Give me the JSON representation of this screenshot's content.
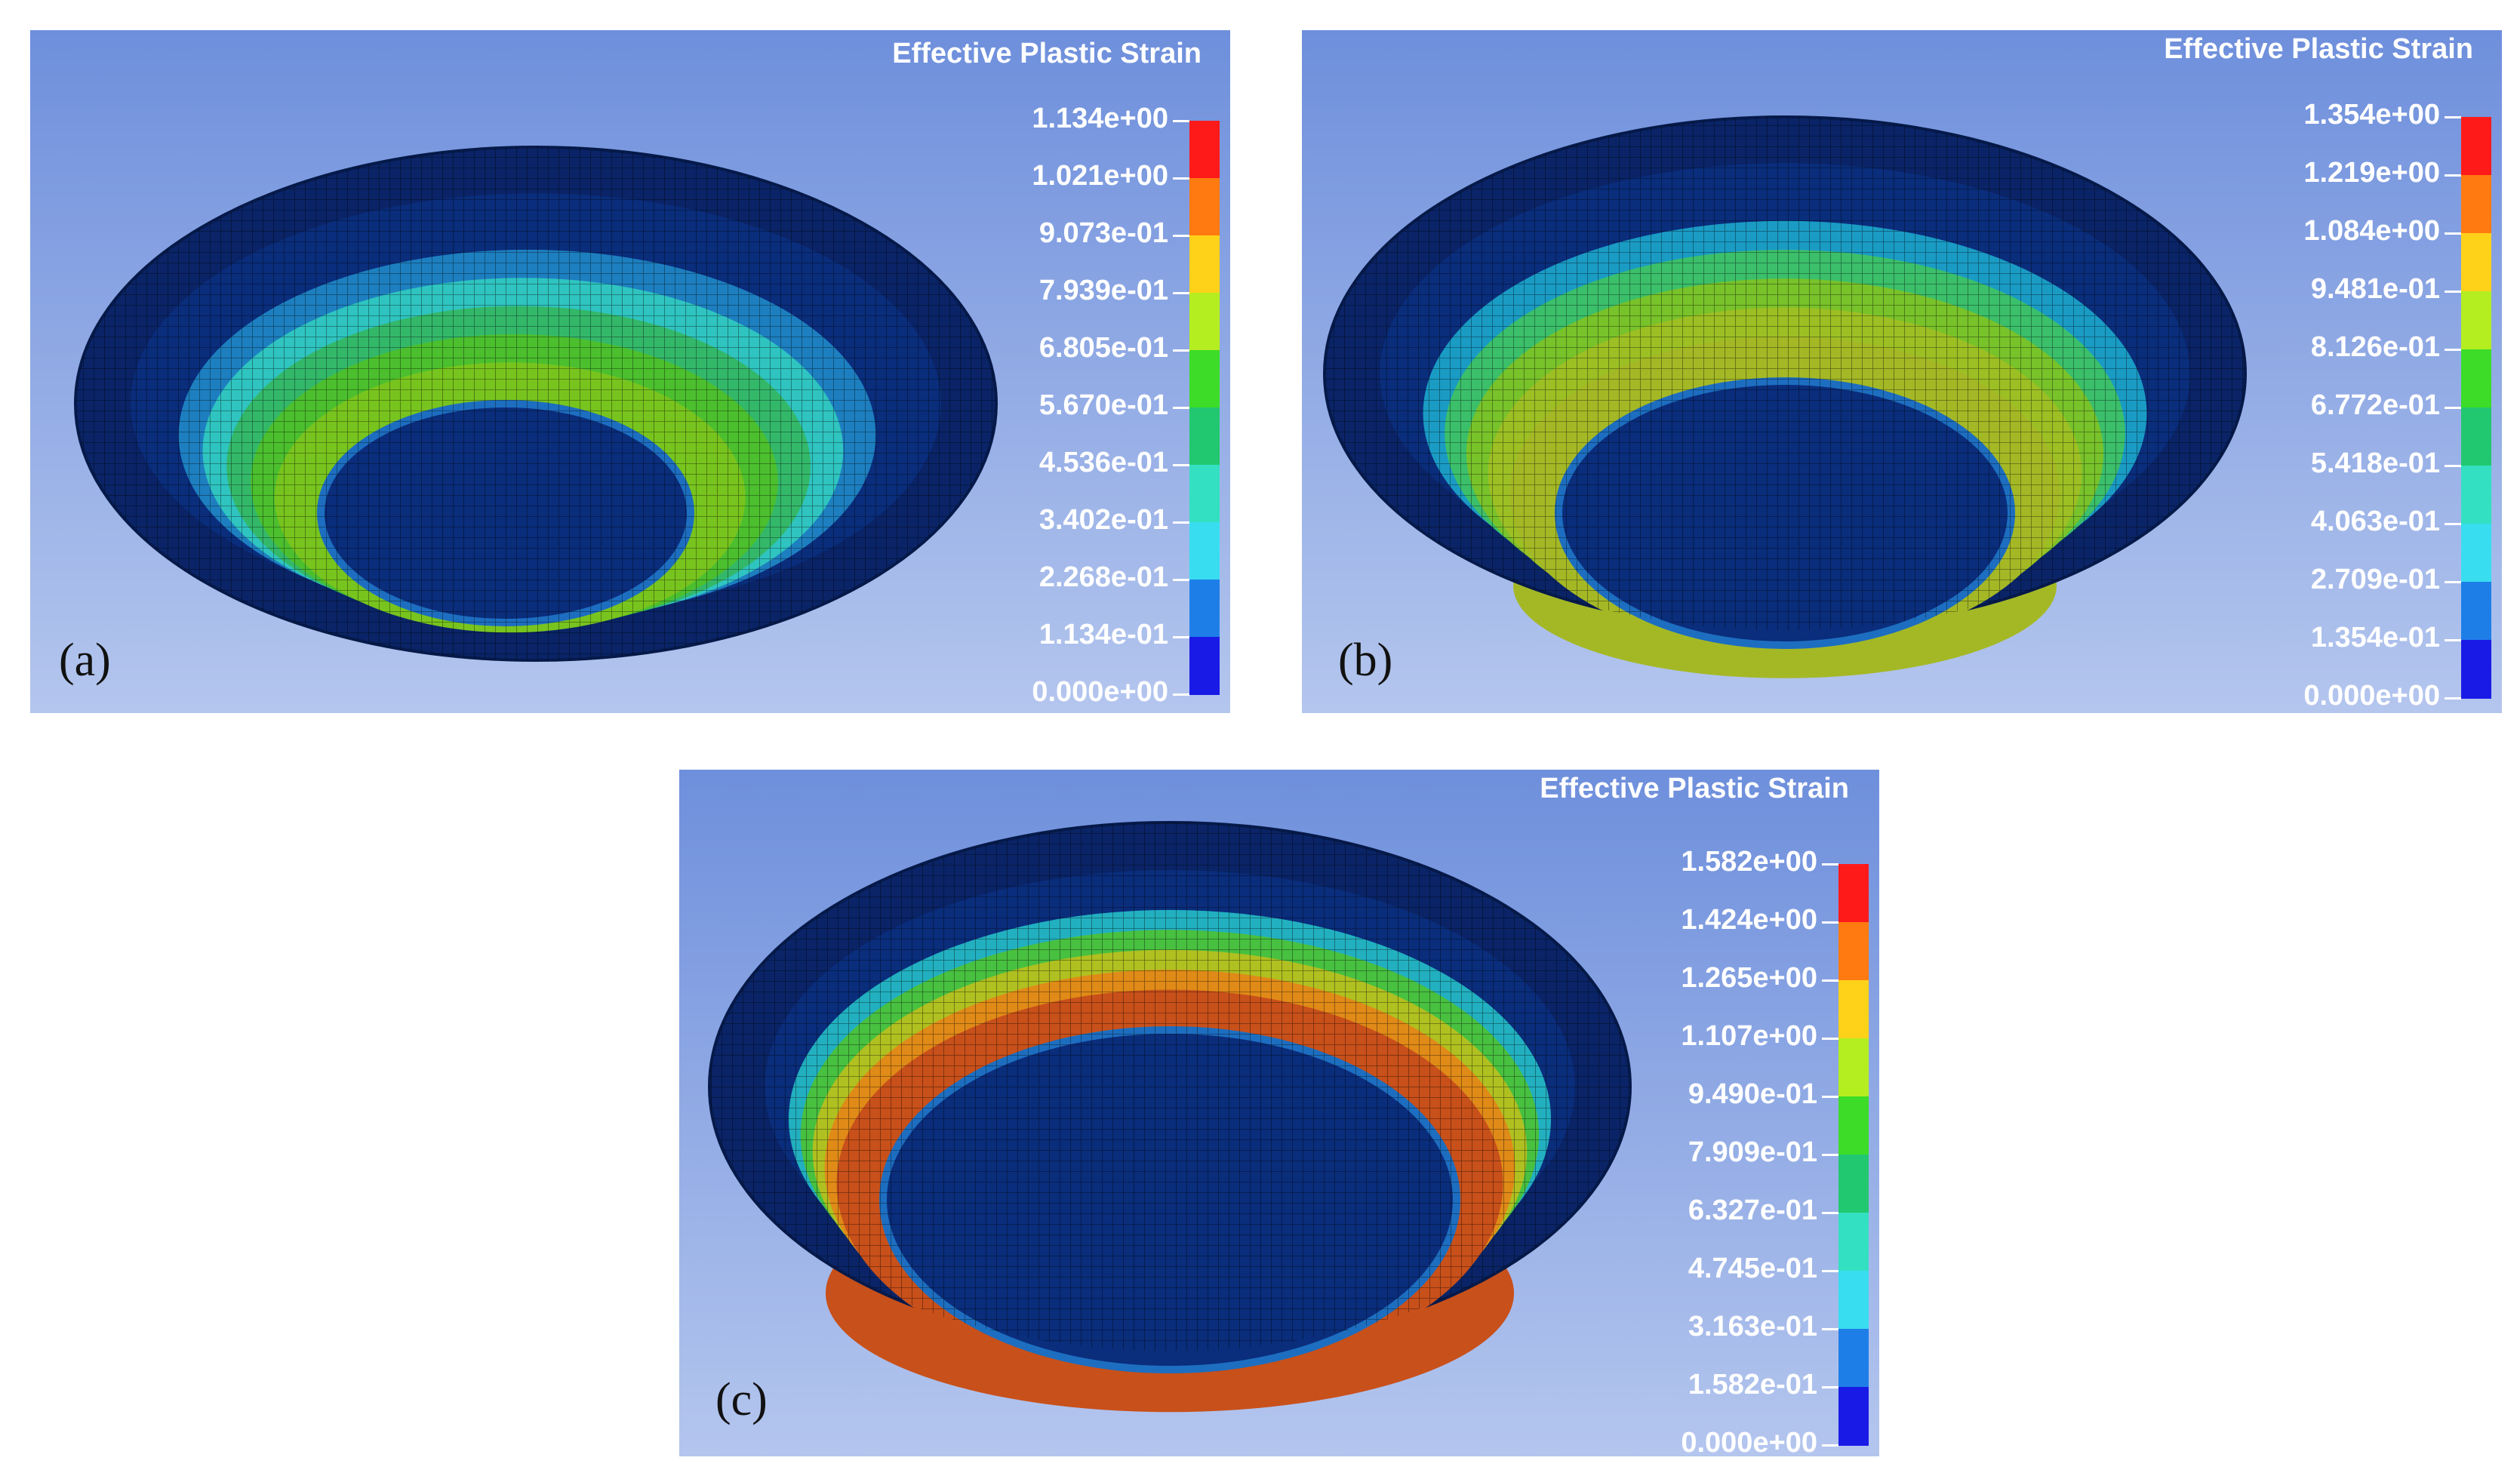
{
  "panels": [
    {
      "tag": "(a)",
      "legend_title": "Effective Plastic Strain",
      "scale_labels": [
        "1.134e+00",
        "1.021e+00",
        "9.073e-01",
        "7.939e-01",
        "6.805e-01",
        "5.670e-01",
        "4.536e-01",
        "3.402e-01",
        "2.268e-01",
        "1.134e-01",
        "0.000e+00"
      ],
      "bands": [
        "#0a2d7c",
        "#0a2d7c",
        "#1d7fc0",
        "#2fc4c0",
        "#33b86a",
        "#4cbf2e",
        "#78c41e"
      ],
      "has_lower_wall": false
    },
    {
      "tag": "(b)",
      "legend_title": "Effective Plastic Strain",
      "scale_labels": [
        "1.354e+00",
        "1.219e+00",
        "1.084e+00",
        "9.481e-01",
        "8.126e-01",
        "6.772e-01",
        "5.418e-01",
        "4.063e-01",
        "2.709e-01",
        "1.354e-01",
        "0.000e+00"
      ],
      "bands": [
        "#0a2d7c",
        "#0a2d7c",
        "#1a9bc4",
        "#3bbf6a",
        "#78c22a",
        "#9cbf24",
        "#a4b826"
      ],
      "has_lower_wall": true
    },
    {
      "tag": "(c)",
      "legend_title": "Effective Plastic Strain",
      "scale_labels": [
        "1.582e+00",
        "1.424e+00",
        "1.265e+00",
        "1.107e+00",
        "9.490e-01",
        "7.909e-01",
        "6.327e-01",
        "4.745e-01",
        "3.163e-01",
        "1.582e-01",
        "0.000e+00"
      ],
      "bands": [
        "#0a2d7c",
        "#0a2d7c",
        "#22b0c0",
        "#48c040",
        "#b0c020",
        "#e08a18",
        "#c8501a"
      ],
      "has_lower_wall": true
    }
  ],
  "color_scale": [
    "#ff1a1a",
    "#ff7a10",
    "#ffd21a",
    "#b4ee20",
    "#3cdc28",
    "#22c870",
    "#33e0c2",
    "#38ddf0",
    "#1e7ee8",
    "#1a1ae6"
  ]
}
